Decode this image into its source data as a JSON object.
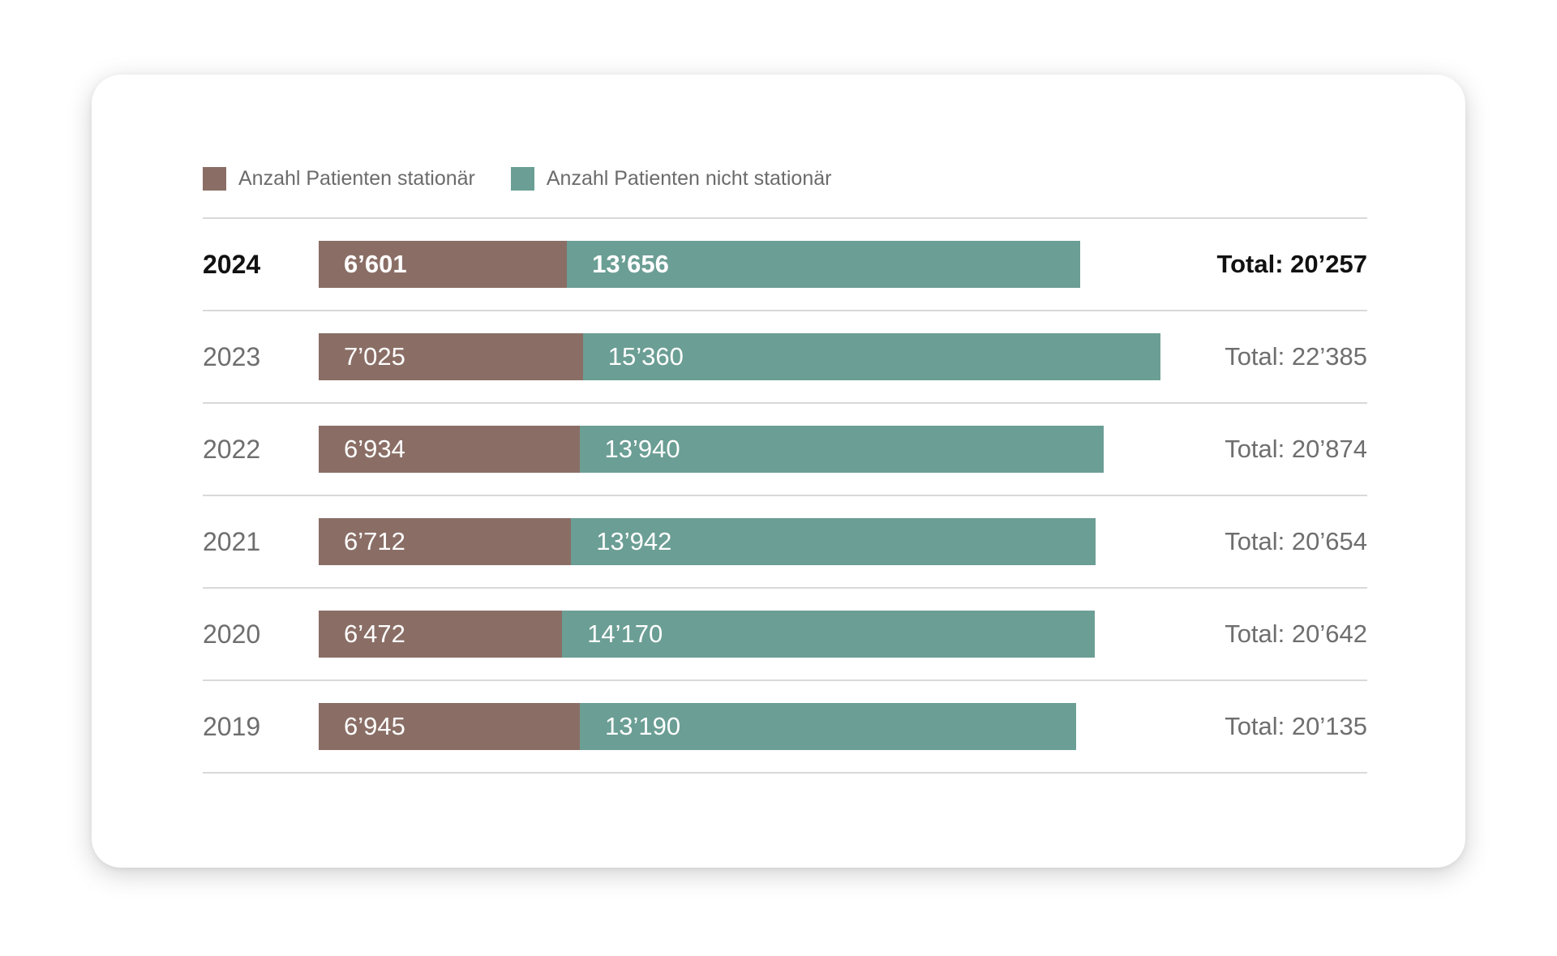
{
  "colors": {
    "stationaer": "#8a6e66",
    "nicht_stationaer": "#6b9e94"
  },
  "chart_data": {
    "type": "bar",
    "orientation": "horizontal",
    "stacked": true,
    "categories": [
      "2024",
      "2023",
      "2022",
      "2021",
      "2020",
      "2019"
    ],
    "series": [
      {
        "name": "Anzahl Patienten stationär",
        "values": [
          6601,
          7025,
          6934,
          6712,
          6472,
          6945
        ],
        "labels": [
          "6’601",
          "7’025",
          "6’934",
          "6’712",
          "6’472",
          "6’945"
        ]
      },
      {
        "name": "Anzahl Patienten nicht stationär",
        "values": [
          13656,
          15360,
          13940,
          13942,
          14170,
          13190
        ],
        "labels": [
          "13’656",
          "15’360",
          "13’940",
          "13’942",
          "14’170",
          "13’190"
        ]
      }
    ],
    "totals": [
      "Total: 20’257",
      "Total: 22’385",
      "Total: 20’874",
      "Total: 20’654",
      "Total: 20’642",
      "Total: 20’135"
    ],
    "highlight_category": "2024",
    "legend_position": "top-left",
    "xlim": [
      0,
      22385
    ]
  }
}
